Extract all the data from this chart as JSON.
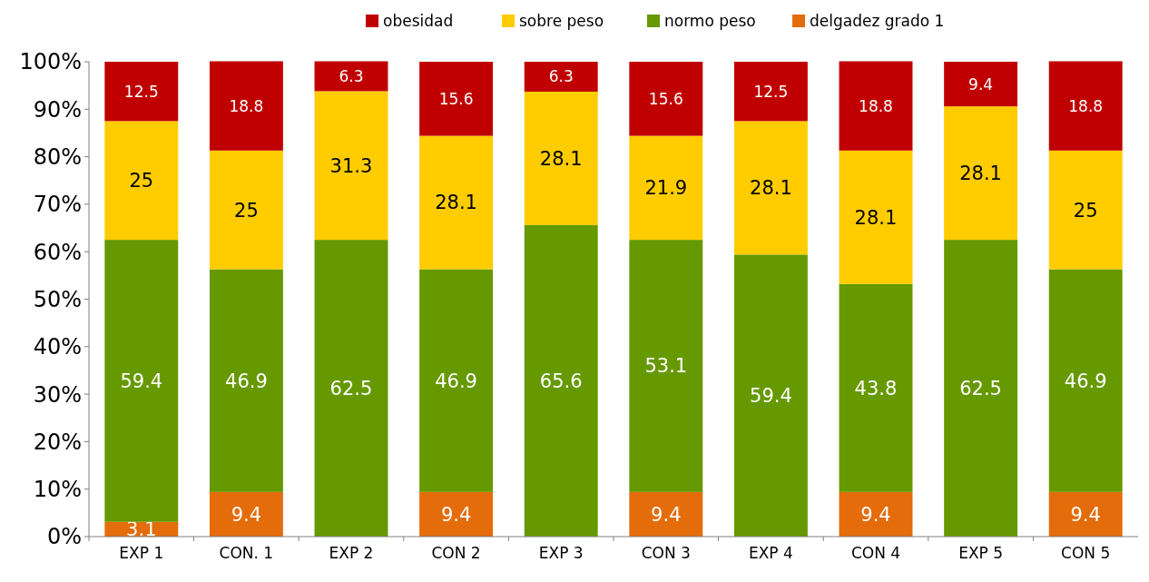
{
  "chart_data": {
    "type": "bar",
    "stacked": true,
    "categories": [
      "EXP 1",
      "CON. 1",
      "EXP 2",
      "CON 2",
      "EXP 3",
      "CON 3",
      "EXP 4",
      "CON 4",
      "EXP 5",
      "CON 5"
    ],
    "series": [
      {
        "name": "delgadez grado 1",
        "color": "#e46c0a",
        "values": [
          3.1,
          9.4,
          null,
          9.4,
          null,
          9.4,
          null,
          9.4,
          null,
          9.4
        ]
      },
      {
        "name": "normo peso",
        "color": "#669900",
        "values": [
          59.4,
          46.9,
          62.5,
          46.9,
          65.6,
          53.1,
          59.4,
          43.8,
          62.5,
          46.9
        ]
      },
      {
        "name": "sobre peso",
        "color": "#ffcc00",
        "values": [
          25,
          25,
          31.3,
          28.1,
          28.1,
          21.9,
          28.1,
          28.1,
          28.1,
          25
        ]
      },
      {
        "name": "obesidad",
        "color": "#c00000",
        "values": [
          12.5,
          18.8,
          6.3,
          15.6,
          6.3,
          15.6,
          12.5,
          18.8,
          9.4,
          18.8
        ]
      }
    ],
    "ylim": [
      0,
      100
    ],
    "yticks": [
      {
        "value": 0,
        "label": "0%"
      },
      {
        "value": 10,
        "label": "10%"
      },
      {
        "value": 20,
        "label": "20%"
      },
      {
        "value": 30,
        "label": "30%"
      },
      {
        "value": 40,
        "label": "40%"
      },
      {
        "value": 50,
        "label": "50%"
      },
      {
        "value": 60,
        "label": "60%"
      },
      {
        "value": 70,
        "label": "70%"
      },
      {
        "value": 80,
        "label": "80%"
      },
      {
        "value": 90,
        "label": "90%"
      },
      {
        "value": 100,
        "label": "100%"
      }
    ],
    "legend": "top",
    "data_labels": true,
    "grid": false
  }
}
